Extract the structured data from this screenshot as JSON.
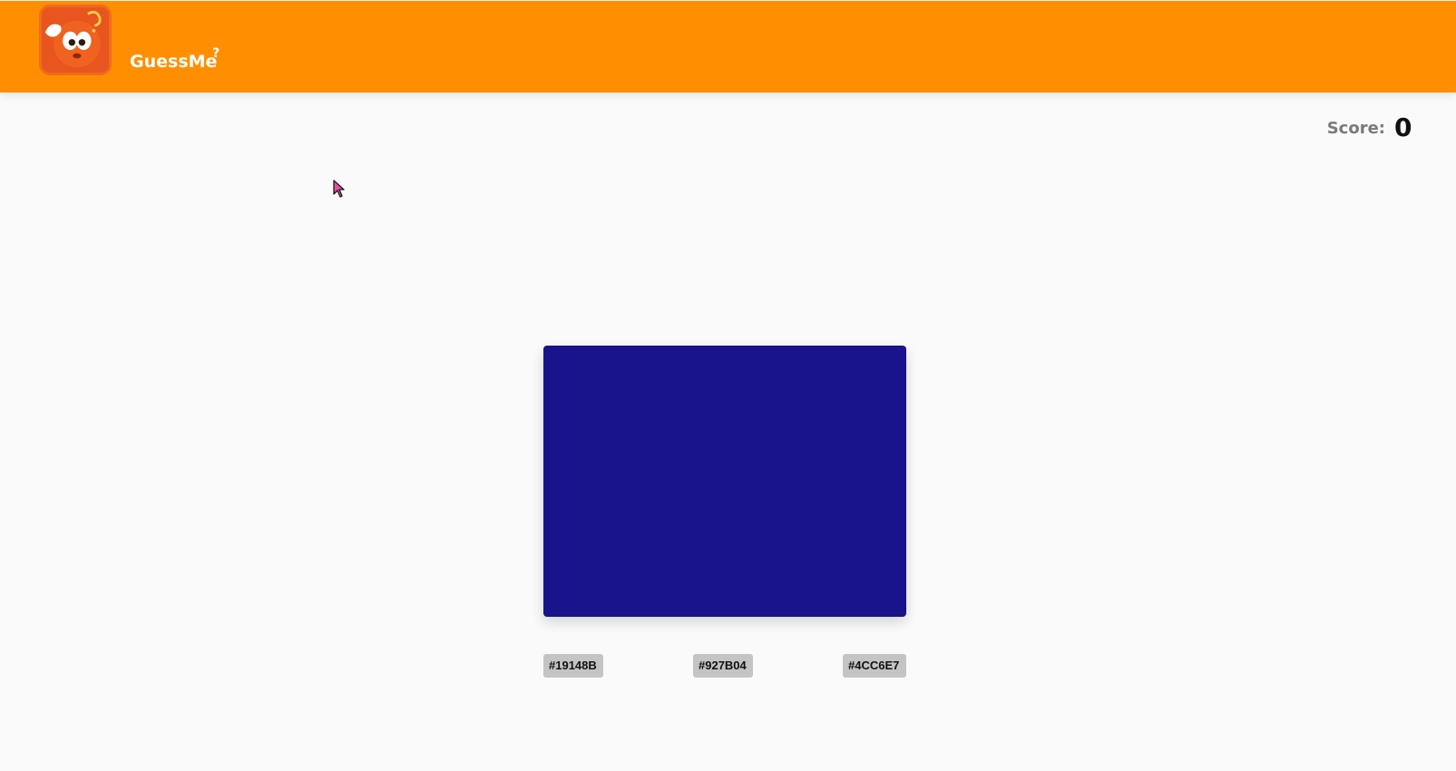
{
  "header": {
    "brand": "GuessMe",
    "brand_mark": "?",
    "logo_icon": "confused-tomato-mascot-icon",
    "background_color": "#ff8f00"
  },
  "score": {
    "label": "Score:",
    "value": "0"
  },
  "game": {
    "target_color": "#19148B",
    "options": [
      "#19148B",
      "#927B04",
      "#4CC6E7"
    ]
  },
  "cursor_icon": "mouse-pointer-icon"
}
